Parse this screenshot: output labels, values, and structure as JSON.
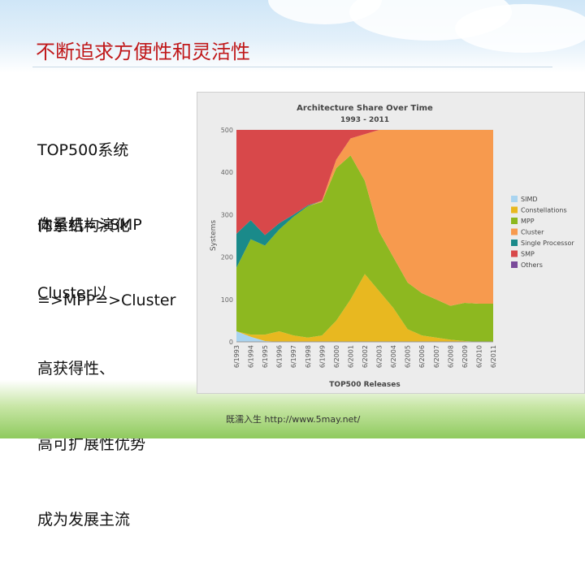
{
  "slide": {
    "title": "不断追求方便性和灵活性",
    "bullets": [
      [
        "TOP500系统",
        "体系结构演化"
      ],
      [
        "向量机=>SMP",
        "=>MPP=>Cluster"
      ],
      [
        "Cluster以",
        "高获得性、",
        "高可扩展性优势",
        "成为发展主流"
      ]
    ],
    "footer": "既濡入生  http://www.5may.net/"
  },
  "chart_data": {
    "type": "area",
    "title": "Architecture Share Over Time",
    "subtitle": "1993 - 2011",
    "xlabel": "TOP500 Releases",
    "ylabel": "Systems",
    "ylim": [
      0,
      500
    ],
    "yticks": [
      "0",
      "100",
      "200",
      "300",
      "400",
      "500"
    ],
    "x": [
      "6/1993",
      "6/1994",
      "6/1995",
      "6/1996",
      "6/1997",
      "6/1998",
      "6/1999",
      "6/2000",
      "6/2001",
      "6/2002",
      "6/2003",
      "6/2004",
      "6/2005",
      "6/2006",
      "6/2007",
      "6/2008",
      "6/2009",
      "6/2010",
      "6/2011"
    ],
    "stacked": true,
    "series": [
      {
        "name": "SIMD",
        "color": "#a9d4f0",
        "values": [
          25,
          12,
          2,
          0,
          0,
          0,
          0,
          0,
          0,
          0,
          0,
          0,
          0,
          0,
          0,
          0,
          0,
          0,
          0
        ]
      },
      {
        "name": "Constellations",
        "color": "#e8b820",
        "values": [
          0,
          5,
          15,
          25,
          15,
          10,
          15,
          50,
          100,
          160,
          120,
          80,
          30,
          15,
          10,
          5,
          2,
          0,
          0
        ]
      },
      {
        "name": "MPP",
        "color": "#8db820",
        "values": [
          150,
          225,
          210,
          240,
          280,
          310,
          315,
          360,
          340,
          220,
          140,
          120,
          110,
          100,
          90,
          80,
          90,
          90,
          90
        ]
      },
      {
        "name": "Cluster",
        "color": "#f79a4e",
        "values": [
          0,
          0,
          0,
          0,
          0,
          0,
          3,
          20,
          40,
          110,
          240,
          300,
          360,
          385,
          400,
          415,
          408,
          410,
          410
        ]
      },
      {
        "name": "Single Processor",
        "color": "#1a8a8a",
        "values": [
          80,
          45,
          25,
          15,
          5,
          2,
          0,
          0,
          0,
          0,
          0,
          0,
          0,
          0,
          0,
          0,
          0,
          0,
          0
        ]
      },
      {
        "name": "SMP",
        "color": "#d8484a",
        "values": [
          245,
          213,
          248,
          220,
          200,
          178,
          167,
          70,
          20,
          10,
          0,
          0,
          0,
          0,
          0,
          0,
          0,
          0,
          0
        ]
      },
      {
        "name": "Others",
        "color": "#7a4a9a",
        "values": [
          0,
          0,
          0,
          0,
          0,
          0,
          0,
          0,
          0,
          0,
          0,
          0,
          0,
          0,
          0,
          0,
          0,
          0,
          0
        ]
      }
    ],
    "legend_position": "right"
  }
}
